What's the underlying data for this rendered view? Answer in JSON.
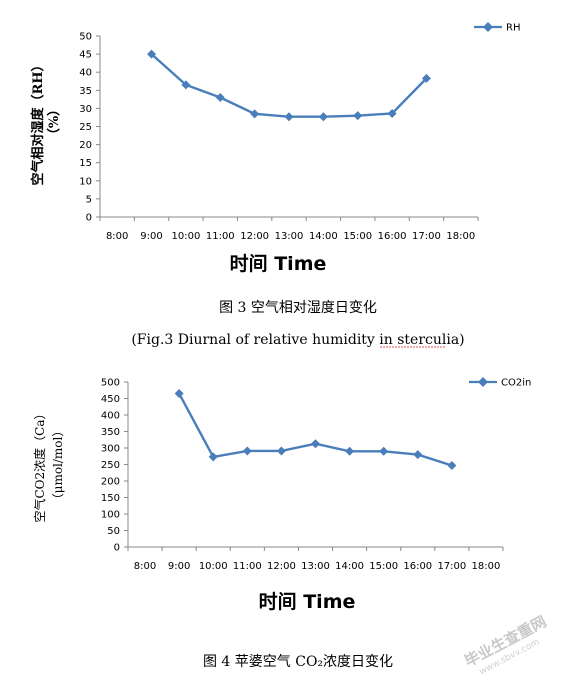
{
  "chart_data": [
    {
      "type": "line",
      "categories": [
        "8:00",
        "9:00",
        "10:00",
        "11:00",
        "12:00",
        "13:00",
        "14:00",
        "15:00",
        "16:00",
        "17:00",
        "18:00"
      ],
      "series": [
        {
          "name": "RH",
          "values": [
            null,
            45,
            36.5,
            33,
            28.5,
            27.7,
            27.7,
            28,
            28.6,
            38.3,
            null
          ],
          "color": "#4a7ebb"
        }
      ],
      "ylim": [
        0,
        50
      ],
      "ytick_step": 5,
      "xlabel": "时间 Time",
      "ylabel": "空气相对湿度（RH）（%）",
      "ylabel_line1": "空气相对湿度（RH）",
      "ylabel_line2": "（%）",
      "legend_position": "top-right",
      "caption": "图 3  空气相对湿度日变化",
      "caption_en": "(Fig.3 Diurnal of relative humidity in sterculia)"
    },
    {
      "type": "line",
      "categories": [
        "8:00",
        "9:00",
        "10:00",
        "11:00",
        "12:00",
        "13:00",
        "14:00",
        "15:00",
        "16:00",
        "17:00",
        "18:00"
      ],
      "series": [
        {
          "name": "CO2in",
          "values": [
            null,
            465,
            273,
            291,
            291,
            313,
            290,
            290,
            280,
            247,
            null
          ],
          "color": "#4a7ebb"
        }
      ],
      "ylim": [
        0,
        500
      ],
      "ytick_step": 50,
      "xlabel": "时间 Time",
      "ylabel": "空气CO2浓度（Ca）（μmol/mol）",
      "ylabel_line1": "空气CO2浓度（Ca）",
      "ylabel_line2": "（μmol/mol）",
      "legend_position": "top-right",
      "caption": "图 4 苹婆空气 CO₂浓度日变化"
    }
  ],
  "watermark": {
    "text": "毕业生查重网",
    "url": "www.sbvv.com"
  }
}
